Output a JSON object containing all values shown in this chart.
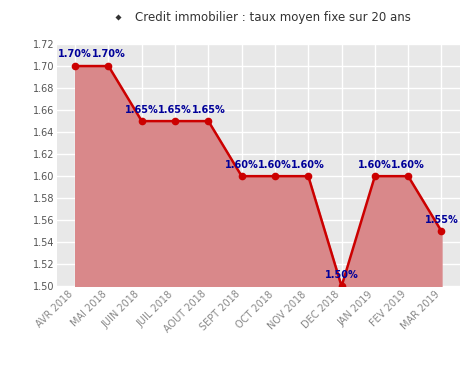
{
  "categories": [
    "AVR 2018",
    "MAI 2018",
    "JUIN 2018",
    "JUIL 2018",
    "AOUT 2018",
    "SEPT 2018",
    "OCT 2018",
    "NOV 2018",
    "DEC 2018",
    "JAN 2019",
    "FEV 2019",
    "MAR 2019"
  ],
  "values": [
    1.7,
    1.7,
    1.65,
    1.65,
    1.65,
    1.6,
    1.6,
    1.6,
    1.5,
    1.6,
    1.6,
    1.55
  ],
  "labels": [
    "1.70%",
    "1.70%",
    "1.65%",
    "1.65%",
    "1.65%",
    "1.60%",
    "1.60%",
    "1.60%",
    "1.50%",
    "1.60%",
    "1.60%",
    "1.55%"
  ],
  "line_color": "#cc0000",
  "fill_color": "#d9888a",
  "marker_color": "#cc0000",
  "label_color": "#000099",
  "legend_label": "Credit immobilier : taux moyen fixe sur 20 ans",
  "legend_marker_color": "#333333",
  "ylim": [
    1.5,
    1.72
  ],
  "yticks": [
    1.5,
    1.52,
    1.54,
    1.56,
    1.58,
    1.6,
    1.62,
    1.64,
    1.66,
    1.68,
    1.7,
    1.72
  ],
  "bg_color": "#ffffff",
  "plot_bg_color": "#e8e8e8",
  "grid_color": "#ffffff",
  "label_fontsize": 7.0,
  "tick_fontsize": 7.0,
  "legend_fontsize": 8.5,
  "line_width": 1.8,
  "marker_size": 4.5
}
